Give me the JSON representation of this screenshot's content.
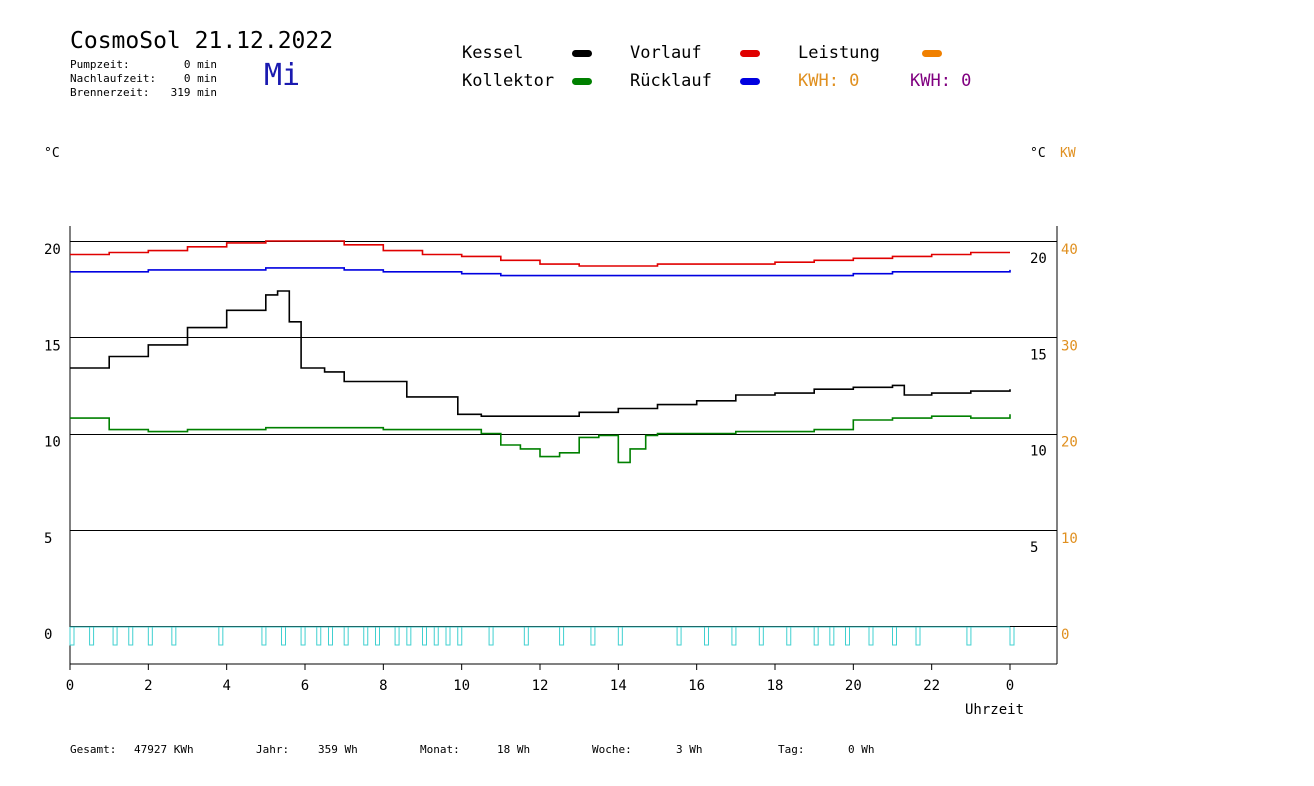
{
  "header": {
    "title": "CosmoSol 21.12.2022",
    "day": "Mi",
    "stats": [
      {
        "label": "Pumpzeit:",
        "value": "0 min"
      },
      {
        "label": "Nachlaufzeit:",
        "value": "0 min"
      },
      {
        "label": "Brennerzeit:",
        "value": "319 min"
      }
    ]
  },
  "legend": {
    "kessel": {
      "label": "Kessel",
      "color": "#000000"
    },
    "kollektor": {
      "label": "Kollektor",
      "color": "#008000"
    },
    "vorlauf": {
      "label": "Vorlauf",
      "color": "#e00000"
    },
    "ruecklauf": {
      "label": "Rücklauf",
      "color": "#0000e0"
    },
    "leistung": {
      "label": "Leistung",
      "color": "#f08000"
    },
    "kwh1": {
      "label": "KWH: 0",
      "color": "#e09020"
    },
    "kwh2": {
      "label": "KWH: 0",
      "color": "#800080"
    }
  },
  "axes": {
    "left_unit": "°C",
    "right_unit": "°C",
    "right_unit2": "KW",
    "x_label": "Uhrzeit"
  },
  "chart_data": {
    "type": "line",
    "xlabel": "Uhrzeit",
    "ylabel": "°C",
    "x_ticks": [
      "0",
      "2",
      "4",
      "6",
      "8",
      "10",
      "12",
      "14",
      "16",
      "18",
      "20",
      "22",
      "0"
    ],
    "xlim": [
      0,
      24
    ],
    "ylim": [
      -1.5,
      22
    ],
    "y_ticks_left": [
      "20",
      "15",
      "10",
      "5",
      "0"
    ],
    "y_ticks_right_temp": [
      "20",
      "15",
      "10",
      "5"
    ],
    "y_ticks_right_kw": [
      "40",
      "30",
      "20",
      "10",
      "0"
    ],
    "grid_lines_y": [
      20.4,
      15.4,
      10.4,
      5.4,
      0.4
    ],
    "series": [
      {
        "name": "Vorlauf",
        "color": "#e00000",
        "x": [
          0,
          1,
          2,
          3,
          4,
          5,
          6,
          7,
          8,
          9,
          10,
          11,
          12,
          13,
          14,
          15,
          16,
          17,
          18,
          19,
          20,
          21,
          22,
          23,
          24
        ],
        "y": [
          19.7,
          19.8,
          19.9,
          20.1,
          20.3,
          20.4,
          20.4,
          20.2,
          19.9,
          19.7,
          19.6,
          19.4,
          19.2,
          19.1,
          19.1,
          19.2,
          19.2,
          19.2,
          19.3,
          19.4,
          19.5,
          19.6,
          19.7,
          19.8,
          19.8
        ]
      },
      {
        "name": "Rücklauf",
        "color": "#0000e0",
        "x": [
          0,
          1,
          2,
          3,
          4,
          5,
          6,
          7,
          8,
          9,
          10,
          11,
          12,
          13,
          14,
          15,
          16,
          17,
          18,
          19,
          20,
          21,
          22,
          23,
          24
        ],
        "y": [
          18.8,
          18.8,
          18.9,
          18.9,
          18.9,
          19.0,
          19.0,
          18.9,
          18.8,
          18.8,
          18.7,
          18.6,
          18.6,
          18.6,
          18.6,
          18.6,
          18.6,
          18.6,
          18.6,
          18.6,
          18.7,
          18.8,
          18.8,
          18.8,
          18.9
        ]
      },
      {
        "name": "Kessel",
        "color": "#000000",
        "x": [
          0,
          1,
          2,
          3,
          4,
          5,
          5.3,
          5.6,
          5.9,
          6.5,
          7,
          8,
          8.6,
          9.5,
          9.9,
          10.5,
          12,
          13,
          14,
          15,
          16,
          17,
          18,
          19,
          20,
          21,
          21.3,
          22,
          23,
          24
        ],
        "y": [
          13.8,
          14.4,
          15.0,
          15.9,
          16.8,
          17.6,
          17.8,
          16.2,
          13.8,
          13.6,
          13.1,
          13.1,
          12.3,
          12.3,
          11.4,
          11.3,
          11.3,
          11.5,
          11.7,
          11.9,
          12.1,
          12.4,
          12.5,
          12.7,
          12.8,
          12.9,
          12.4,
          12.5,
          12.6,
          12.7
        ]
      },
      {
        "name": "Kollektor",
        "color": "#008000",
        "x": [
          0,
          0.8,
          1,
          2,
          3,
          4,
          5,
          6,
          7,
          8,
          9,
          10,
          10.5,
          11,
          11.5,
          12,
          12.5,
          13,
          13.5,
          14,
          14.3,
          14.7,
          15,
          16,
          17,
          18,
          19,
          20,
          21,
          22,
          23,
          24
        ],
        "y": [
          11.2,
          11.2,
          10.6,
          10.5,
          10.6,
          10.6,
          10.7,
          10.7,
          10.7,
          10.6,
          10.6,
          10.6,
          10.4,
          9.8,
          9.6,
          9.2,
          9.4,
          10.2,
          10.3,
          8.9,
          9.6,
          10.3,
          10.4,
          10.4,
          10.5,
          10.5,
          10.6,
          11.1,
          11.2,
          11.3,
          11.2,
          11.4
        ]
      }
    ],
    "pump_pulses": {
      "name": "Leistung",
      "color": "#40d0d0",
      "x": [
        0.0,
        0.5,
        1.1,
        1.5,
        2.0,
        2.6,
        3.8,
        4.9,
        5.4,
        5.9,
        6.3,
        6.6,
        7.0,
        7.5,
        7.8,
        8.3,
        8.6,
        9.0,
        9.3,
        9.6,
        9.9,
        10.7,
        11.6,
        12.5,
        13.3,
        14.0,
        15.5,
        16.2,
        16.9,
        17.6,
        18.3,
        19.0,
        19.4,
        19.8,
        20.4,
        21.0,
        21.6,
        22.9,
        24.0
      ]
    }
  },
  "footer": {
    "gesamt": {
      "label": "Gesamt:",
      "value": "47927 KWh"
    },
    "jahr": {
      "label": "Jahr:",
      "value": "359 Wh"
    },
    "monat": {
      "label": "Monat:",
      "value": "18 Wh"
    },
    "woche": {
      "label": "Woche:",
      "value": "3 Wh"
    },
    "tag": {
      "label": "Tag:",
      "value": "0 Wh"
    }
  }
}
